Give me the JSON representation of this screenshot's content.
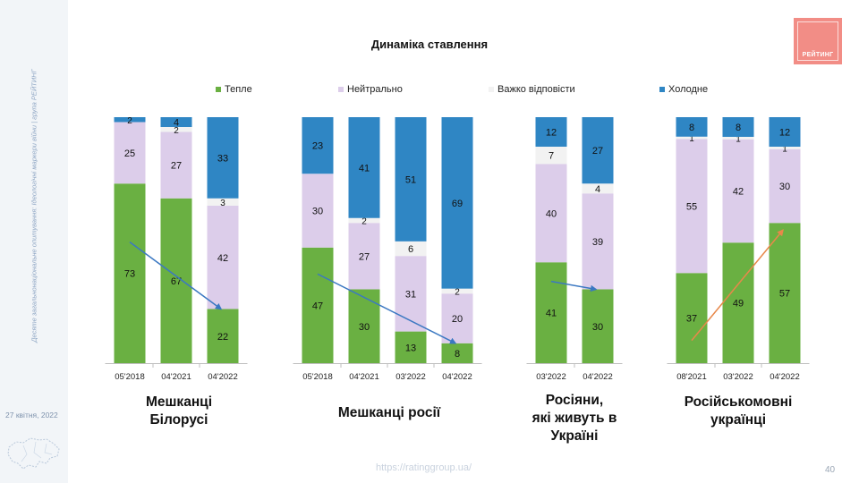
{
  "sidebar": {
    "vertical_text": "Десяте загальнонаціональне опитування: Ідеологічні маркери війни | група РЕЙТИНГ",
    "date": "27 квітня, 2022"
  },
  "logo": {
    "text": "РЕЙТИНГ",
    "color": "#f28d86"
  },
  "footer": {
    "url": "https://ratinggroup.ua/",
    "page_number": "40"
  },
  "colors": {
    "warm": "#6ab042",
    "neutral": "#dccdea",
    "hard": "#f2f2f2",
    "cold": "#2f86c4",
    "trend_down": "#3b78c2",
    "trend_up": "#e8884a"
  },
  "chart_data": {
    "type": "bar",
    "stacked": true,
    "percent_scale": true,
    "title": "Динаміка ставлення",
    "legend": {
      "position": "top"
    },
    "series": [
      {
        "name": "Тепле",
        "color": "#6ab042"
      },
      {
        "name": "Нейтрально",
        "color": "#dccdea"
      },
      {
        "name": "Важко відповісти",
        "color": "#f2f2f2"
      },
      {
        "name": "Холодне",
        "color": "#2f86c4"
      }
    ],
    "groups": [
      {
        "label": "Мешканці Білорусі",
        "label_lines": [
          "Мешканці",
          "Білорусі"
        ],
        "bars": [
          {
            "period": "05'2018",
            "values": [
              73,
              25,
              null,
              2
            ]
          },
          {
            "period": "04'2021",
            "values": [
              67,
              27,
              2,
              4
            ]
          },
          {
            "period": "04'2022",
            "values": [
              22,
              42,
              3,
              33
            ]
          }
        ],
        "trend": {
          "from_bar": 0,
          "to_bar": 2,
          "direction": "down"
        }
      },
      {
        "label": "Мешканці росії",
        "label_lines": [
          "Мешканці росії"
        ],
        "bars": [
          {
            "period": "05'2018",
            "values": [
              47,
              30,
              null,
              23
            ]
          },
          {
            "period": "04'2021",
            "values": [
              30,
              27,
              2,
              41
            ]
          },
          {
            "period": "03'2022",
            "values": [
              13,
              31,
              6,
              51
            ]
          },
          {
            "period": "04'2022",
            "values": [
              8,
              20,
              2,
              69
            ]
          }
        ],
        "trend": {
          "from_bar": 0,
          "to_bar": 3,
          "direction": "down"
        }
      },
      {
        "label": "Росіяни, які живуть в Україні",
        "label_lines": [
          "Росіяни,",
          "які живуть в",
          "Україні"
        ],
        "bars": [
          {
            "period": "03'2022",
            "values": [
              41,
              40,
              7,
              12
            ]
          },
          {
            "period": "04'2022",
            "values": [
              30,
              39,
              4,
              27
            ]
          }
        ],
        "trend": {
          "from_bar": 0,
          "to_bar": 1,
          "direction": "down"
        }
      },
      {
        "label": "Російськомовні українці",
        "label_lines": [
          "Російськомовні",
          "українці"
        ],
        "bars": [
          {
            "period": "08'2021",
            "values": [
              37,
              55,
              1,
              8
            ]
          },
          {
            "period": "03'2022",
            "values": [
              49,
              42,
              1,
              8
            ]
          },
          {
            "period": "04'2022",
            "values": [
              57,
              30,
              1,
              12
            ]
          }
        ],
        "trend": {
          "from_bar": 0,
          "to_bar": 2,
          "direction": "up"
        }
      }
    ]
  }
}
